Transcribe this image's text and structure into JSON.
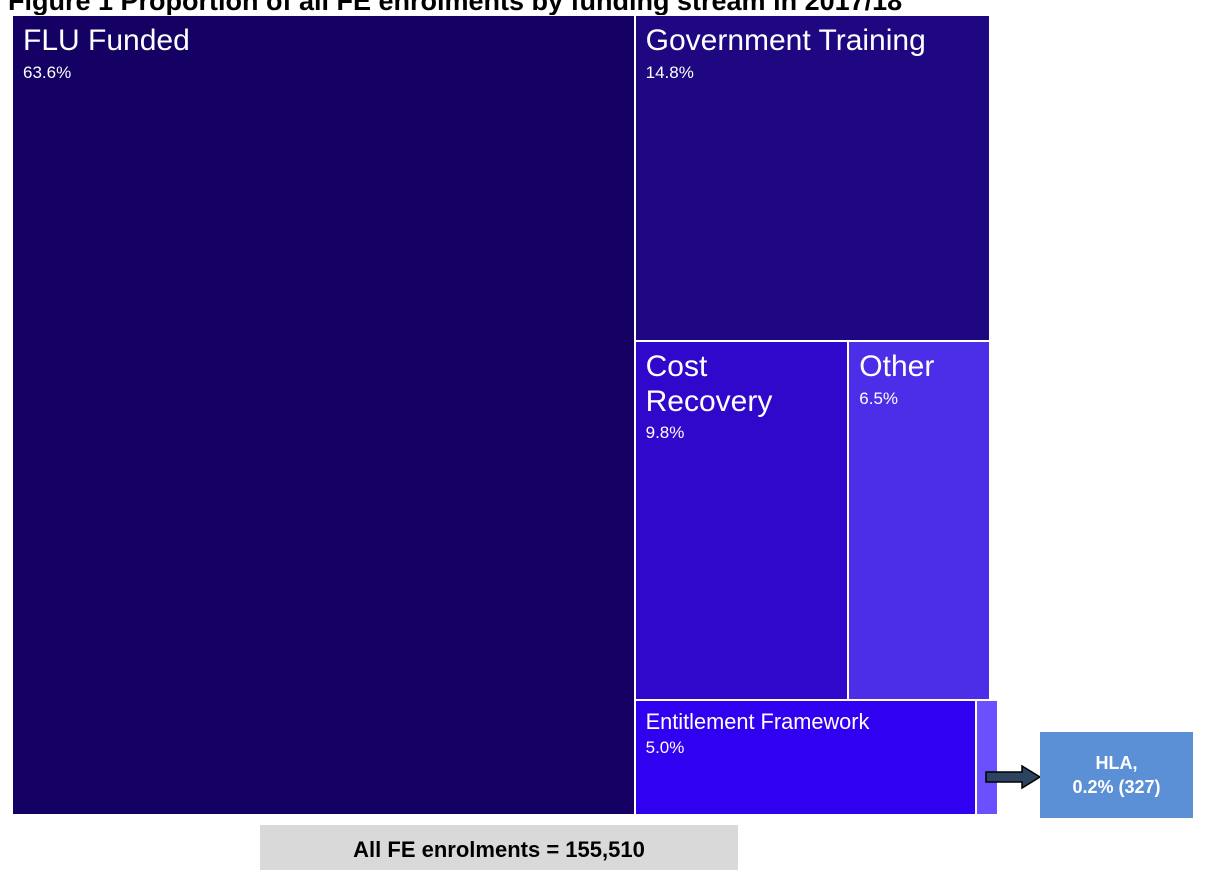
{
  "chart_data": {
    "type": "treemap",
    "title": "Figure 1 Proportion of all FE enrolments by funding stream in 2017/18",
    "categories": [
      "FLU Funded",
      "Government Training",
      "Cost Recovery",
      "Other",
      "Entitlement Framework",
      null
    ],
    "values": [
      63.6,
      14.8,
      9.8,
      6.5,
      5.0,
      0.2
    ],
    "value_labels": [
      "63.6%",
      "14.8%",
      "9.8%",
      "6.5%",
      "5.0%",
      null
    ],
    "colors": [
      "#150064",
      "#1f0782",
      "#3008cc",
      "#4c2ee8",
      "#3000f0",
      "#6a50ff"
    ],
    "annotations": [
      "HLA,",
      "0.2% (327)"
    ],
    "footer": "All FE enrolments = 155,510"
  }
}
